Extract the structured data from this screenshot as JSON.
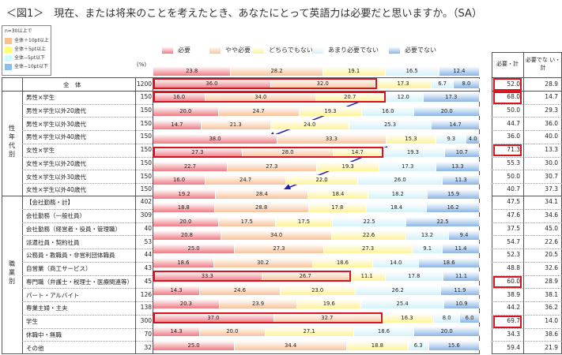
{
  "title": "＜図1＞　現在、または将来のことを考えたとき、あなたにとって英語力は必要だと思いますか。（SA）",
  "condition_legend": {
    "title": "n=30以上で",
    "items": [
      {
        "label": "全体＋10pt以上",
        "color": "#f8c08c"
      },
      {
        "label": "全体＋5pt以上",
        "color": "#ffff70"
      },
      {
        "label": "全体−5pt以下",
        "color": "#ccfcfc"
      },
      {
        "label": "全体−10pt以下",
        "color": "#8cc0ec"
      }
    ]
  },
  "pct_label": "(%)",
  "right_headers": {
    "need_total": "必要・計",
    "not_need_total": "必要でな い・計"
  },
  "group_labels": {
    "gender_age": "性年代別",
    "occupation": "職業別"
  },
  "colors": {
    "highlight": "#d8121e",
    "arrow": "#2020b0"
  },
  "chart_data": {
    "type": "bar",
    "orientation": "horizontal-stacked-100",
    "legend": [
      "必要",
      "やや必要",
      "どちらでもない",
      "あまり必要でない",
      "必要でない"
    ],
    "series_colors": [
      "#f07c84",
      "#f8c49c",
      "#fff39a",
      "#d4f2fa",
      "#8cb6e6"
    ],
    "header_bar": [
      23.8,
      28.2,
      19.1,
      16.5,
      12.4
    ],
    "rows": [
      {
        "group": "",
        "label": "全　体",
        "n": "1200",
        "need": "52.0",
        "notneed": "28.9",
        "hl": true
      },
      {
        "group": "gender_age",
        "label": "男性×学生",
        "n": "150",
        "need": "68.0",
        "notneed": "14.7",
        "hl": true
      },
      {
        "group": "gender_age",
        "label": "男性×学生以外20歳代",
        "n": "150",
        "need": "50.0",
        "notneed": "29.3"
      },
      {
        "group": "gender_age",
        "label": "男性×学生以外30歳代",
        "n": "150",
        "need": "44.7",
        "notneed": "36.0"
      },
      {
        "group": "gender_age",
        "label": "男性×学生以外40歳代",
        "n": "150",
        "need": "36.0",
        "notneed": "40.0"
      },
      {
        "group": "gender_age",
        "label": "女性×学生",
        "n": "150",
        "need": "71.3",
        "notneed": "13.3",
        "hl": true
      },
      {
        "group": "gender_age",
        "label": "女性×学生以外20歳代",
        "n": "150",
        "need": "55.3",
        "notneed": "30.0"
      },
      {
        "group": "gender_age",
        "label": "女性×学生以外30歳代",
        "n": "150",
        "need": "50.0",
        "notneed": "30.7"
      },
      {
        "group": "gender_age",
        "label": "女性×学生以外40歳代",
        "n": "150",
        "need": "40.7",
        "notneed": "37.3"
      },
      {
        "group": "occupation",
        "label": "【会社勤務・計】",
        "n": "402",
        "need": "47.5",
        "notneed": "34.1"
      },
      {
        "group": "occupation",
        "label": "会社勤務（一般社員）",
        "n": "309",
        "need": "47.6",
        "notneed": "34.6"
      },
      {
        "group": "occupation",
        "label": "会社勤務（経営者・役員・管理職）",
        "n": "40",
        "need": "37.5",
        "notneed": "45.0"
      },
      {
        "group": "occupation",
        "label": "派遣社員・契約社員",
        "n": "53",
        "need": "54.7",
        "notneed": "22.6"
      },
      {
        "group": "occupation",
        "label": "公務員・教職員・非営利団体職員",
        "n": "44",
        "need": "52.3",
        "notneed": "20.5"
      },
      {
        "group": "occupation",
        "label": "自営業（商工サービス）",
        "n": "43",
        "need": "48.8",
        "notneed": "32.6"
      },
      {
        "group": "occupation",
        "label": "専門職（弁護士・税理士・医療関連等）",
        "n": "45",
        "need": "60.0",
        "notneed": "28.9",
        "hl": true
      },
      {
        "group": "occupation",
        "label": "パート・アルバイト",
        "n": "126",
        "need": "38.9",
        "notneed": "38.1"
      },
      {
        "group": "occupation",
        "label": "専業主婦・主夫",
        "n": "138",
        "need": "44.2",
        "notneed": "36.2"
      },
      {
        "group": "occupation",
        "label": "学生",
        "n": "300",
        "need": "69.7",
        "notneed": "14.0",
        "hl": true
      },
      {
        "group": "occupation",
        "label": "休職中・無職",
        "n": "70",
        "need": "34.3",
        "notneed": "38.6"
      },
      {
        "group": "occupation",
        "label": "その他",
        "n": "32",
        "need": "59.4",
        "notneed": "21.9"
      }
    ],
    "bars": [
      {
        "values": [
          36.0,
          32.0,
          17.3,
          6.7,
          8.0
        ],
        "boxed": 2
      },
      {
        "values": [
          16.0,
          34.0,
          20.7,
          12.0,
          17.3
        ],
        "boxed": 3
      },
      {
        "values": [
          20.0,
          24.7,
          19.3,
          16.0,
          20.0
        ]
      },
      {
        "values": [
          14.7,
          21.3,
          24.0,
          25.3,
          14.7
        ]
      },
      {
        "values": [
          38.0,
          33.3,
          15.3,
          9.3,
          4.0
        ]
      },
      {
        "values": [
          27.3,
          28.0,
          14.7,
          19.3,
          10.7
        ],
        "boxed": 3
      },
      {
        "values": [
          22.7,
          27.3,
          19.3,
          17.3,
          13.3
        ]
      },
      {
        "values": [
          16.0,
          24.7,
          22.0,
          26.0,
          11.3
        ]
      },
      {
        "values": [
          19.2,
          28.4,
          18.4,
          18.2,
          15.9
        ]
      },
      {
        "values": [
          18.8,
          28.8,
          17.8,
          18.4,
          16.2
        ]
      },
      {
        "values": [
          20.0,
          17.5,
          17.5,
          22.5,
          22.5
        ]
      },
      {
        "values": [
          20.8,
          34.0,
          22.6,
          13.2,
          9.4
        ]
      },
      {
        "values": [
          25.0,
          27.3,
          27.3,
          9.1,
          11.4
        ]
      },
      {
        "values": [
          18.6,
          30.2,
          18.6,
          14.0,
          18.6
        ]
      },
      {
        "values": [
          33.3,
          26.7,
          11.1,
          17.8,
          11.1
        ],
        "boxed": 2
      },
      {
        "values": [
          14.3,
          24.6,
          23.0,
          26.2,
          11.9
        ]
      },
      {
        "values": [
          20.3,
          23.9,
          19.6,
          25.4,
          10.9
        ]
      },
      {
        "values": [
          37.0,
          32.7,
          16.3,
          8.0,
          6.0
        ],
        "boxed": 2
      },
      {
        "values": [
          14.3,
          20.0,
          27.1,
          18.6,
          20.0
        ]
      },
      {
        "values": [
          25.0,
          34.4,
          18.8,
          6.3,
          15.6
        ]
      }
    ]
  }
}
